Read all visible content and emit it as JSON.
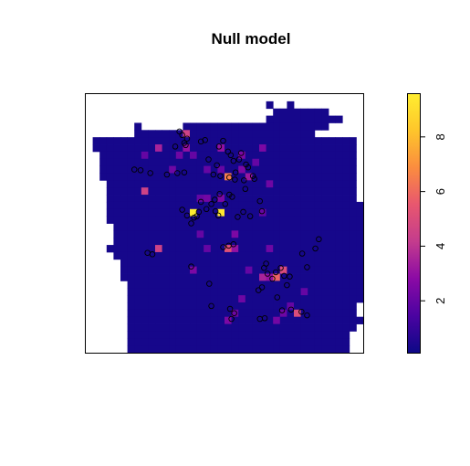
{
  "chart_data": {
    "type": "heatmap",
    "title": "Null model",
    "xlabel": "",
    "ylabel": "",
    "grid": false,
    "legend": "right",
    "colorbar": {
      "range": [
        0.1,
        9.6
      ],
      "ticks": [
        {
          "value": 2,
          "label": "2"
        },
        {
          "value": 4,
          "label": "4"
        },
        {
          "value": 6,
          "label": "6"
        },
        {
          "value": 8,
          "label": "8"
        }
      ],
      "colors": [
        "#0d0887",
        "#4b03a1",
        "#8b0aa5",
        "#c43c8d",
        "#e8576f",
        "#fb8d3f",
        "#fec62b",
        "#ffee30"
      ]
    },
    "grid_size": {
      "cols": 40,
      "rows": 36
    },
    "base_value": 0.3,
    "mask_rows": [
      [],
      [
        [
          26,
          26
        ],
        [
          29,
          29
        ]
      ],
      [
        [
          27,
          34
        ]
      ],
      [
        [
          26,
          35
        ],
        [
          36,
          36
        ]
      ],
      [
        [
          7,
          7
        ],
        [
          14,
          26
        ],
        [
          26,
          34
        ]
      ],
      [
        [
          7,
          32
        ]
      ],
      [
        [
          1,
          38
        ]
      ],
      [
        [
          1,
          38
        ]
      ],
      [
        [
          2,
          38
        ]
      ],
      [
        [
          2,
          38
        ]
      ],
      [
        [
          2,
          38
        ]
      ],
      [
        [
          2,
          38
        ]
      ],
      [
        [
          3,
          38
        ]
      ],
      [
        [
          3,
          38
        ]
      ],
      [
        [
          3,
          38
        ]
      ],
      [
        [
          3,
          39
        ]
      ],
      [
        [
          3,
          39
        ]
      ],
      [
        [
          3,
          39
        ]
      ],
      [
        [
          4,
          39
        ]
      ],
      [
        [
          4,
          39
        ]
      ],
      [
        [
          4,
          39
        ]
      ],
      [
        [
          3,
          39
        ]
      ],
      [
        [
          4,
          39
        ]
      ],
      [
        [
          5,
          39
        ]
      ],
      [
        [
          5,
          39
        ]
      ],
      [
        [
          5,
          39
        ]
      ],
      [
        [
          6,
          39
        ]
      ],
      [
        [
          6,
          39
        ]
      ],
      [
        [
          6,
          39
        ]
      ],
      [
        [
          6,
          38
        ]
      ],
      [
        [
          6,
          38
        ]
      ],
      [
        [
          6,
          38
        ],
        [
          39,
          39
        ]
      ],
      [
        [
          6,
          38
        ]
      ],
      [
        [
          6,
          37
        ]
      ],
      [
        [
          6,
          37
        ]
      ],
      [
        [
          6,
          37
        ]
      ]
    ],
    "hot_cells": [
      [
        14,
        5,
        4.5
      ],
      [
        10,
        7,
        3.5
      ],
      [
        14,
        7,
        3.0
      ],
      [
        15,
        8,
        2.0
      ],
      [
        19,
        7,
        3.0
      ],
      [
        22,
        8,
        2.5
      ],
      [
        12,
        10,
        2.2
      ],
      [
        17,
        10,
        2.0
      ],
      [
        19,
        10,
        2.0
      ],
      [
        22,
        10,
        2.5
      ],
      [
        20,
        11,
        6.5
      ],
      [
        23,
        11,
        3.2
      ],
      [
        24,
        9,
        2.0
      ],
      [
        8,
        13,
        4.5
      ],
      [
        16,
        14,
        2.0
      ],
      [
        17,
        14,
        2.3
      ],
      [
        19,
        14,
        2.5
      ],
      [
        15,
        16,
        9.6
      ],
      [
        19,
        16,
        9.4
      ],
      [
        25,
        16,
        2.0
      ],
      [
        10,
        21,
        4.5
      ],
      [
        20,
        21,
        5.2
      ],
      [
        21,
        21,
        3.0
      ],
      [
        26,
        21,
        2.2
      ],
      [
        15,
        24,
        2.5
      ],
      [
        25,
        25,
        3.5
      ],
      [
        27,
        25,
        5.8
      ],
      [
        28,
        24,
        5.0
      ],
      [
        26,
        25,
        3.0
      ],
      [
        30,
        30,
        5.0
      ],
      [
        28,
        30,
        2.2
      ],
      [
        27,
        31,
        2.3
      ],
      [
        21,
        30,
        2.2
      ],
      [
        20,
        31,
        2.5
      ],
      [
        29,
        29,
        2.0
      ],
      [
        22,
        28,
        2.2
      ],
      [
        17,
        21,
        2.0
      ],
      [
        23,
        24,
        2.0
      ],
      [
        13,
        8,
        2.2
      ],
      [
        8,
        8,
        2.0
      ],
      [
        21,
        19,
        2.5
      ],
      [
        16,
        19,
        2.0
      ],
      [
        26,
        12,
        2.2
      ],
      [
        25,
        7,
        2.5
      ],
      [
        31,
        27,
        2.0
      ]
    ],
    "points": [
      [
        13.5,
        5.2
      ],
      [
        13.9,
        5.7
      ],
      [
        14.6,
        6.2
      ],
      [
        14.2,
        6.8
      ],
      [
        16.6,
        6.6
      ],
      [
        17.2,
        6.4
      ],
      [
        12.9,
        7.3
      ],
      [
        14.4,
        7.1
      ],
      [
        19.2,
        7.3
      ],
      [
        19.8,
        6.5
      ],
      [
        20.5,
        8.0
      ],
      [
        20.9,
        8.5
      ],
      [
        21.3,
        9.3
      ],
      [
        22.4,
        8.2
      ],
      [
        22.1,
        9.1
      ],
      [
        23.1,
        9.8
      ],
      [
        23.4,
        10.2
      ],
      [
        21.6,
        10.9
      ],
      [
        7.0,
        10.5
      ],
      [
        7.9,
        10.6
      ],
      [
        9.3,
        11.0
      ],
      [
        11.7,
        11.2
      ],
      [
        13.2,
        11.0
      ],
      [
        14.2,
        10.9
      ],
      [
        17.7,
        9.1
      ],
      [
        18.9,
        9.9
      ],
      [
        18.4,
        11.2
      ],
      [
        19.4,
        11.4
      ],
      [
        20.7,
        11.6
      ],
      [
        21.5,
        11.9
      ],
      [
        22.8,
        12.0
      ],
      [
        24.1,
        11.4
      ],
      [
        23.0,
        13.2
      ],
      [
        19.3,
        13.9
      ],
      [
        20.7,
        14.0
      ],
      [
        21.1,
        14.3
      ],
      [
        18.6,
        14.7
      ],
      [
        18.1,
        15.3
      ],
      [
        17.4,
        16.0
      ],
      [
        16.6,
        15.0
      ],
      [
        16.3,
        16.4
      ],
      [
        16.0,
        17.0
      ],
      [
        15.6,
        17.2
      ],
      [
        15.2,
        18.0
      ],
      [
        14.6,
        16.9
      ],
      [
        13.9,
        16.1
      ],
      [
        18.7,
        16.3
      ],
      [
        19.1,
        16.9
      ],
      [
        20.1,
        15.3
      ],
      [
        25.1,
        14.9
      ],
      [
        23.7,
        17.0
      ],
      [
        21.3,
        20.9
      ],
      [
        20.6,
        21.1
      ],
      [
        19.8,
        21.3
      ],
      [
        26.0,
        23.6
      ],
      [
        25.7,
        24.2
      ],
      [
        26.2,
        25.0
      ],
      [
        27.4,
        24.8
      ],
      [
        28.1,
        24.2
      ],
      [
        28.6,
        25.3
      ],
      [
        29.4,
        25.4
      ],
      [
        29.0,
        26.6
      ],
      [
        26.9,
        25.7
      ],
      [
        25.4,
        26.9
      ],
      [
        24.9,
        27.3
      ],
      [
        27.6,
        28.3
      ],
      [
        31.2,
        22.2
      ],
      [
        31.9,
        24.1
      ],
      [
        33.6,
        20.2
      ],
      [
        33.1,
        21.5
      ],
      [
        8.9,
        22.1
      ],
      [
        9.6,
        22.3
      ],
      [
        15.2,
        24.0
      ],
      [
        17.8,
        26.4
      ],
      [
        18.1,
        29.5
      ],
      [
        20.8,
        29.9
      ],
      [
        21.4,
        30.5
      ],
      [
        21.0,
        31.3
      ],
      [
        25.1,
        31.3
      ],
      [
        25.8,
        31.2
      ],
      [
        28.3,
        30.1
      ],
      [
        29.6,
        30.0
      ],
      [
        31.1,
        30.3
      ],
      [
        31.9,
        30.8
      ],
      [
        24.3,
        11.8
      ],
      [
        25.4,
        16.3
      ],
      [
        22.7,
        16.4
      ],
      [
        21.9,
        17.1
      ]
    ]
  }
}
